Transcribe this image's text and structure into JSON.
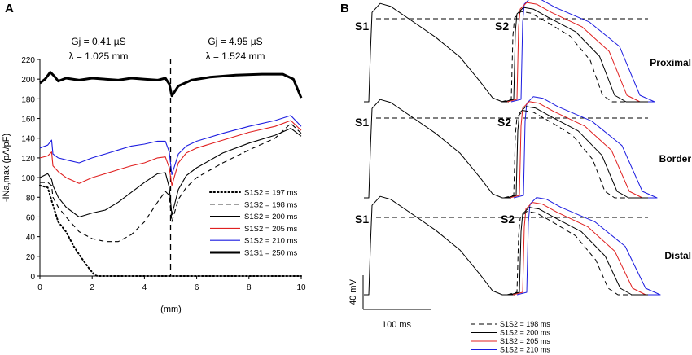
{
  "colors": {
    "black": "#000000",
    "red": "#e02020",
    "blue": "#1c1ce0",
    "axis": "#000000"
  },
  "chart_data": [
    {
      "panel_label": "A",
      "type": "line",
      "xlabel": "(mm)",
      "ylabel": "-INa,max (pA/pF)",
      "xlim": [
        0,
        10
      ],
      "ylim": [
        0,
        220
      ],
      "x_ticks": [
        "0",
        "2",
        "4",
        "6",
        "8",
        "10"
      ],
      "y_ticks": [
        "0",
        "20",
        "40",
        "60",
        "80",
        "100",
        "120",
        "140",
        "160",
        "180",
        "200",
        "220"
      ],
      "divider_x": 5,
      "annotations": {
        "left_gj": "Gj = 0.41 µS",
        "left_lambda": "λ = 1.025 mm",
        "right_gj": "Gj = 4.95 µS",
        "right_lambda": "λ = 1.524 mm"
      },
      "legend_position": "bottom-right",
      "series": [
        {
          "name": "S1S2 = 197 ms",
          "style": "dotted",
          "color": "black",
          "x": [
            0,
            0.3,
            0.5,
            0.7,
            1.0,
            1.3,
            1.6,
            1.9,
            2.1,
            2.2,
            3,
            4,
            5,
            6,
            7,
            8,
            9,
            10
          ],
          "y": [
            92,
            90,
            72,
            55,
            45,
            30,
            18,
            7,
            1,
            0,
            0,
            0,
            0,
            0,
            0,
            0,
            0,
            0
          ]
        },
        {
          "name": "S1S2 = 198 ms",
          "style": "dashed",
          "color": "black",
          "x": [
            0,
            0.3,
            0.45,
            0.5,
            0.7,
            1.0,
            1.5,
            2.0,
            2.5,
            3.0,
            3.5,
            4.0,
            4.5,
            4.8,
            4.95,
            5.05,
            5.3,
            5.6,
            6,
            7,
            8,
            9,
            9.6,
            10
          ],
          "y": [
            95,
            95,
            92,
            80,
            70,
            60,
            45,
            38,
            35,
            35,
            42,
            55,
            75,
            86,
            82,
            55,
            78,
            90,
            100,
            115,
            128,
            140,
            155,
            145
          ]
        },
        {
          "name": "S1S2 = 200 ms",
          "style": "solid",
          "color": "black",
          "x": [
            0,
            0.3,
            0.45,
            0.5,
            0.7,
            1.0,
            1.5,
            2.0,
            2.5,
            3.0,
            3.5,
            4.0,
            4.5,
            4.8,
            4.95,
            5.05,
            5.3,
            5.6,
            6,
            7,
            8,
            9,
            9.6,
            10
          ],
          "y": [
            100,
            104,
            98,
            92,
            80,
            70,
            60,
            64,
            67,
            75,
            85,
            95,
            104,
            105,
            90,
            62,
            88,
            102,
            110,
            125,
            135,
            143,
            150,
            142
          ]
        },
        {
          "name": "S1S2 = 205 ms",
          "style": "solid",
          "color": "red",
          "x": [
            0,
            0.3,
            0.45,
            0.5,
            0.7,
            1.0,
            1.5,
            2.0,
            2.5,
            3.0,
            3.5,
            4.0,
            4.5,
            4.8,
            4.95,
            5.05,
            5.3,
            5.6,
            6,
            7,
            8,
            9,
            9.6,
            10
          ],
          "y": [
            120,
            122,
            126,
            112,
            106,
            100,
            94,
            100,
            104,
            108,
            112,
            115,
            120,
            121,
            110,
            92,
            115,
            125,
            130,
            138,
            146,
            152,
            158,
            148
          ]
        },
        {
          "name": "S1S2 = 210 ms",
          "style": "solid",
          "color": "blue",
          "x": [
            0,
            0.3,
            0.45,
            0.5,
            0.7,
            1.0,
            1.5,
            2.0,
            2.5,
            3.0,
            3.5,
            4.0,
            4.5,
            4.8,
            4.95,
            5.05,
            5.3,
            5.6,
            6,
            7,
            8,
            9,
            9.6,
            10
          ],
          "y": [
            130,
            133,
            138,
            124,
            120,
            118,
            115,
            120,
            124,
            128,
            132,
            134,
            137,
            137,
            126,
            103,
            124,
            132,
            137,
            145,
            152,
            158,
            163,
            152
          ]
        },
        {
          "name": "S1S1 = 250 ms",
          "style": "thick",
          "color": "black",
          "x": [
            0,
            0.2,
            0.4,
            0.55,
            0.7,
            1.0,
            1.5,
            2.0,
            2.5,
            3.0,
            3.5,
            4.0,
            4.5,
            4.8,
            4.95,
            5.05,
            5.3,
            5.8,
            6.5,
            7.5,
            8.5,
            9.3,
            9.7,
            10
          ],
          "y": [
            196,
            200,
            207,
            203,
            198,
            201,
            199,
            201,
            200,
            199,
            201,
            200,
            199,
            201,
            195,
            183,
            193,
            199,
            202,
            204,
            205,
            205,
            200,
            181
          ]
        }
      ]
    },
    {
      "panel_label": "B",
      "type": "line",
      "description_rows": [
        "Proximal",
        "Border",
        "Distal"
      ],
      "s1_label": "S1",
      "s2_label": "S2",
      "scale_bar_voltage": "40 mV",
      "scale_bar_time": "100 ms",
      "legend_position": "bottom-center",
      "series": [
        {
          "name": "S1S2 = 198 ms",
          "style": "dashed",
          "color": "black",
          "s2_onset_ms": 198
        },
        {
          "name": "S1S2 = 200 ms",
          "style": "solid",
          "color": "black",
          "s2_onset_ms": 200
        },
        {
          "name": "S1S2 = 205 ms",
          "style": "solid",
          "color": "red",
          "s2_onset_ms": 205
        },
        {
          "name": "S1S2 = 210 ms",
          "style": "solid",
          "color": "blue",
          "s2_onset_ms": 210
        }
      ]
    }
  ]
}
